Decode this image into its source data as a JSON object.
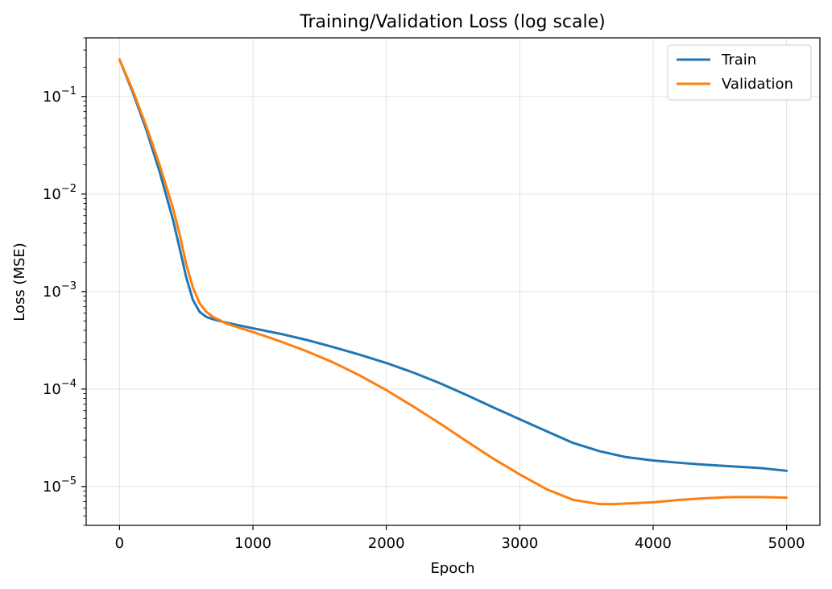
{
  "chart_data": {
    "type": "line",
    "title": "Training/Validation Loss (log scale)",
    "xlabel": "Epoch",
    "ylabel": "Loss (MSE)",
    "xscale": "linear",
    "yscale": "log",
    "xlim": [
      -250,
      5250
    ],
    "ylim": [
      4e-06,
      0.4
    ],
    "xticks": [
      0,
      1000,
      2000,
      3000,
      4000,
      5000
    ],
    "yticks": [
      {
        "value": 0.1,
        "base": "10",
        "exp": "−1"
      },
      {
        "value": 0.01,
        "base": "10",
        "exp": "−2"
      },
      {
        "value": 0.001,
        "base": "10",
        "exp": "−3"
      },
      {
        "value": 0.0001,
        "base": "10",
        "exp": "−4"
      },
      {
        "value": 1e-05,
        "base": "10",
        "exp": "−5"
      }
    ],
    "grid": true,
    "legend_position": "top-right",
    "series": [
      {
        "name": "Train",
        "color": "#1f77b4",
        "x": [
          0,
          100,
          200,
          300,
          400,
          450,
          500,
          550,
          600,
          650,
          700,
          750,
          800,
          1000,
          1200,
          1400,
          1600,
          1800,
          2000,
          2200,
          2400,
          2600,
          2800,
          3000,
          3200,
          3400,
          3600,
          3800,
          4000,
          4200,
          4400,
          4600,
          4800,
          5000
        ],
        "y": [
          0.24,
          0.11,
          0.046,
          0.017,
          0.0055,
          0.0028,
          0.0014,
          0.00082,
          0.00062,
          0.00055,
          0.00052,
          0.0005,
          0.00048,
          0.00042,
          0.00037,
          0.00032,
          0.00027,
          0.000225,
          0.000185,
          0.000148,
          0.000115,
          8.7e-05,
          6.5e-05,
          4.9e-05,
          3.7e-05,
          2.8e-05,
          2.3e-05,
          2e-05,
          1.85e-05,
          1.75e-05,
          1.67e-05,
          1.61e-05,
          1.55e-05,
          1.45e-05
        ]
      },
      {
        "name": "Validation",
        "color": "#ff7f0e",
        "x": [
          0,
          100,
          200,
          300,
          400,
          450,
          500,
          550,
          600,
          650,
          700,
          750,
          800,
          1000,
          1200,
          1400,
          1600,
          1800,
          2000,
          2200,
          2400,
          2600,
          2800,
          3000,
          3200,
          3400,
          3600,
          3700,
          3800,
          4000,
          4200,
          4400,
          4600,
          4800,
          5000
        ],
        "y": [
          0.24,
          0.115,
          0.05,
          0.02,
          0.0072,
          0.0039,
          0.0019,
          0.0011,
          0.00076,
          0.00062,
          0.00055,
          0.00051,
          0.00047,
          0.000385,
          0.00031,
          0.000245,
          0.000188,
          0.000138,
          9.75e-05,
          6.65e-05,
          4.45e-05,
          2.92e-05,
          1.94e-05,
          1.33e-05,
          9.4e-06,
          7.3e-06,
          6.6e-06,
          6.6e-06,
          6.7e-06,
          6.9e-06,
          7.3e-06,
          7.6e-06,
          7.8e-06,
          7.8e-06,
          7.7e-06
        ]
      }
    ]
  }
}
